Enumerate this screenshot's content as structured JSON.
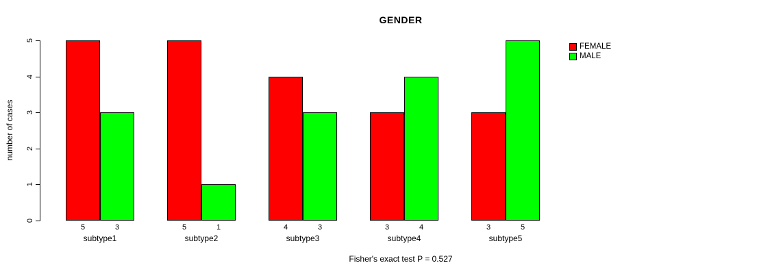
{
  "chart_data": {
    "type": "bar",
    "title": "GENDER",
    "categories": [
      "subtype1",
      "subtype2",
      "subtype3",
      "subtype4",
      "subtype5"
    ],
    "series": [
      {
        "name": "FEMALE",
        "color": "#ff0000",
        "values": [
          5,
          5,
          4,
          3,
          3
        ]
      },
      {
        "name": "MALE",
        "color": "#00ff00",
        "values": [
          3,
          1,
          3,
          4,
          5
        ]
      }
    ],
    "xlabel": "",
    "ylabel": "number of cases",
    "ylim": [
      0,
      5
    ],
    "yticks": [
      0,
      1,
      2,
      3,
      4,
      5
    ],
    "bar_value_labels": true,
    "grid": false,
    "legend_position": "right",
    "annotation": "Fisher's exact test P = 0.527"
  }
}
